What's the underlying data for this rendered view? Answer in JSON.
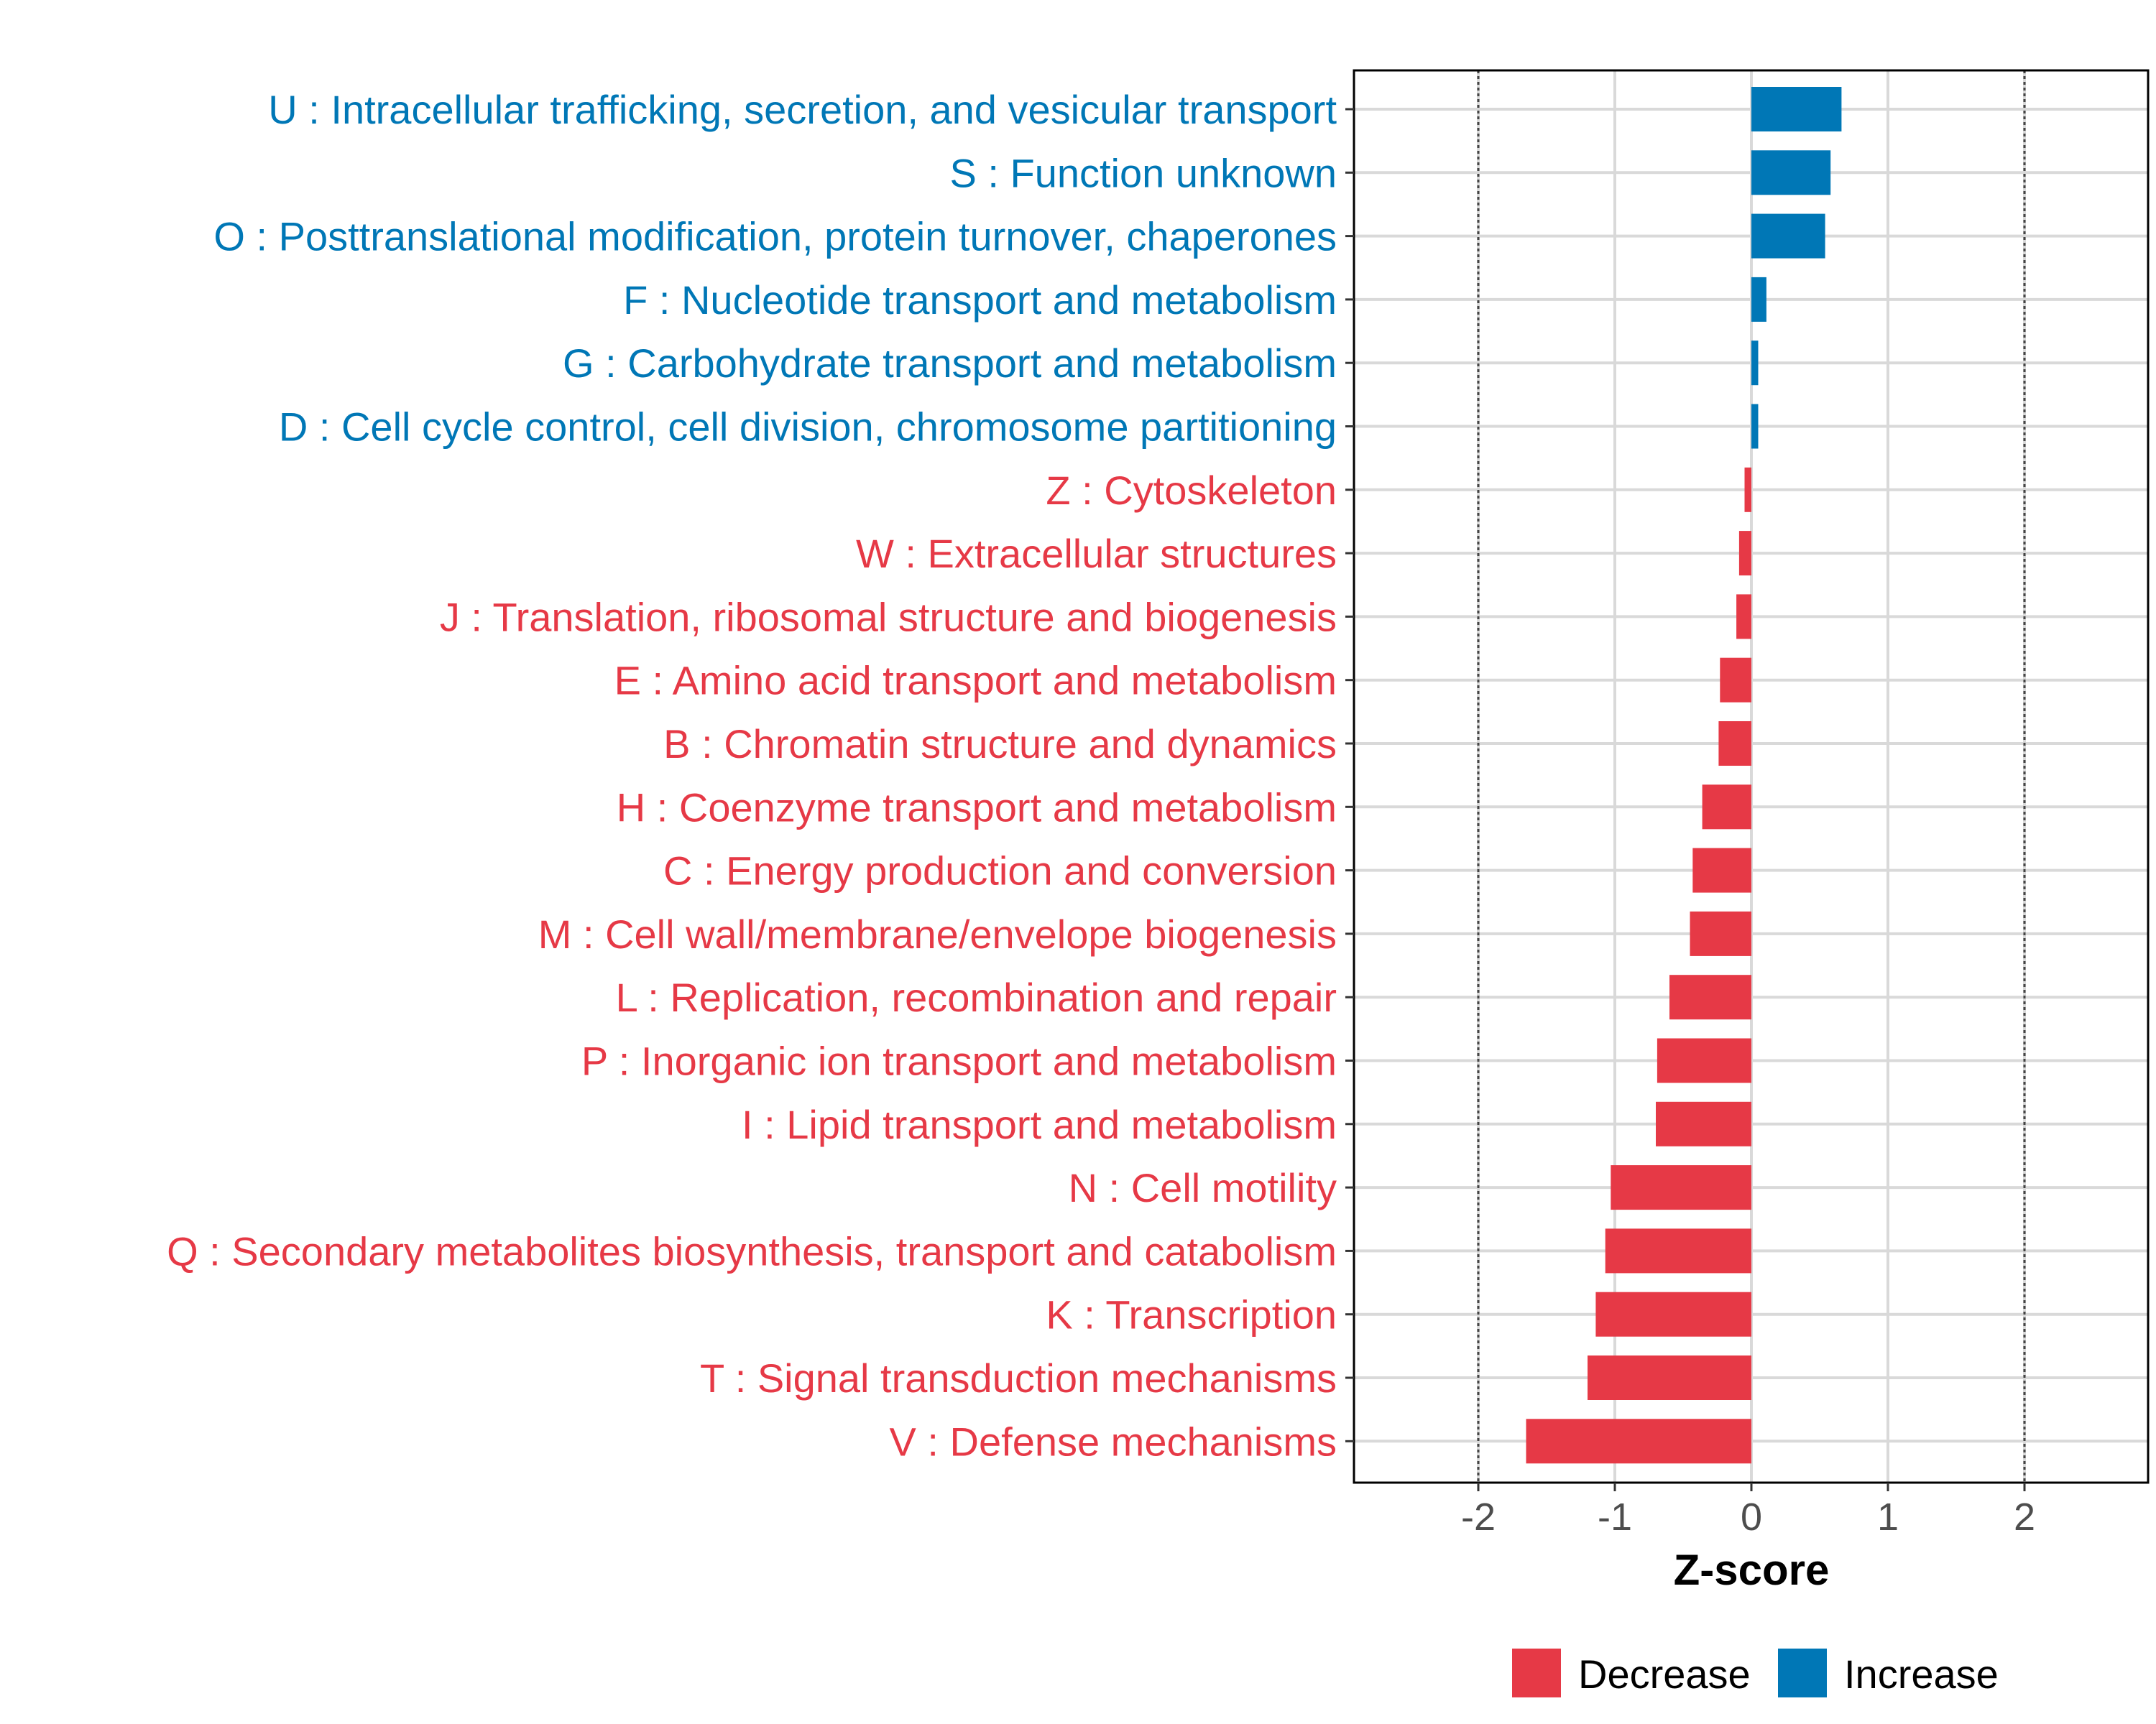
{
  "chart_data": {
    "type": "bar",
    "orientation": "horizontal",
    "title": "",
    "xlabel": "Z-score",
    "ylabel": "",
    "xlim": [
      -2.9,
      2.9
    ],
    "x_ticks": [
      -2,
      -1,
      0,
      1,
      2
    ],
    "x_tick_labels": [
      "-2",
      "-1",
      "0",
      "1",
      "2"
    ],
    "reference_lines": [
      -2,
      2
    ],
    "grid": true,
    "legend_position": "bottom",
    "colors": {
      "Decrease": "#E63946",
      "Increase": "#0077B6"
    },
    "categories": [
      "U : Intracellular trafficking, secretion, and vesicular transport",
      "S : Function unknown",
      "O : Posttranslational modification, protein turnover, chaperones",
      "F : Nucleotide transport and metabolism",
      "G : Carbohydrate transport and metabolism",
      "D : Cell cycle control, cell division, chromosome partitioning",
      "Z : Cytoskeleton",
      "W : Extracellular structures",
      "J : Translation, ribosomal structure and biogenesis",
      "E : Amino acid transport and metabolism",
      "B : Chromatin structure and dynamics",
      "H : Coenzyme transport and metabolism",
      "C : Energy production and conversion",
      "M : Cell wall/membrane/envelope biogenesis",
      "L : Replication, recombination and repair",
      "P : Inorganic ion transport and metabolism",
      "I : Lipid transport and metabolism",
      "N : Cell motility",
      "Q : Secondary metabolites biosynthesis, transport and catabolism",
      "K : Transcription",
      "T : Signal transduction mechanisms",
      "V : Defense mechanisms"
    ],
    "values": [
      0.66,
      0.58,
      0.54,
      0.11,
      0.05,
      0.05,
      -0.05,
      -0.09,
      -0.11,
      -0.23,
      -0.24,
      -0.36,
      -0.43,
      -0.45,
      -0.6,
      -0.69,
      -0.7,
      -1.03,
      -1.07,
      -1.14,
      -1.2,
      -1.65
    ],
    "groups": [
      "Increase",
      "Increase",
      "Increase",
      "Increase",
      "Increase",
      "Increase",
      "Decrease",
      "Decrease",
      "Decrease",
      "Decrease",
      "Decrease",
      "Decrease",
      "Decrease",
      "Decrease",
      "Decrease",
      "Decrease",
      "Decrease",
      "Decrease",
      "Decrease",
      "Decrease",
      "Decrease",
      "Decrease"
    ],
    "legend": [
      "Decrease",
      "Increase"
    ]
  }
}
